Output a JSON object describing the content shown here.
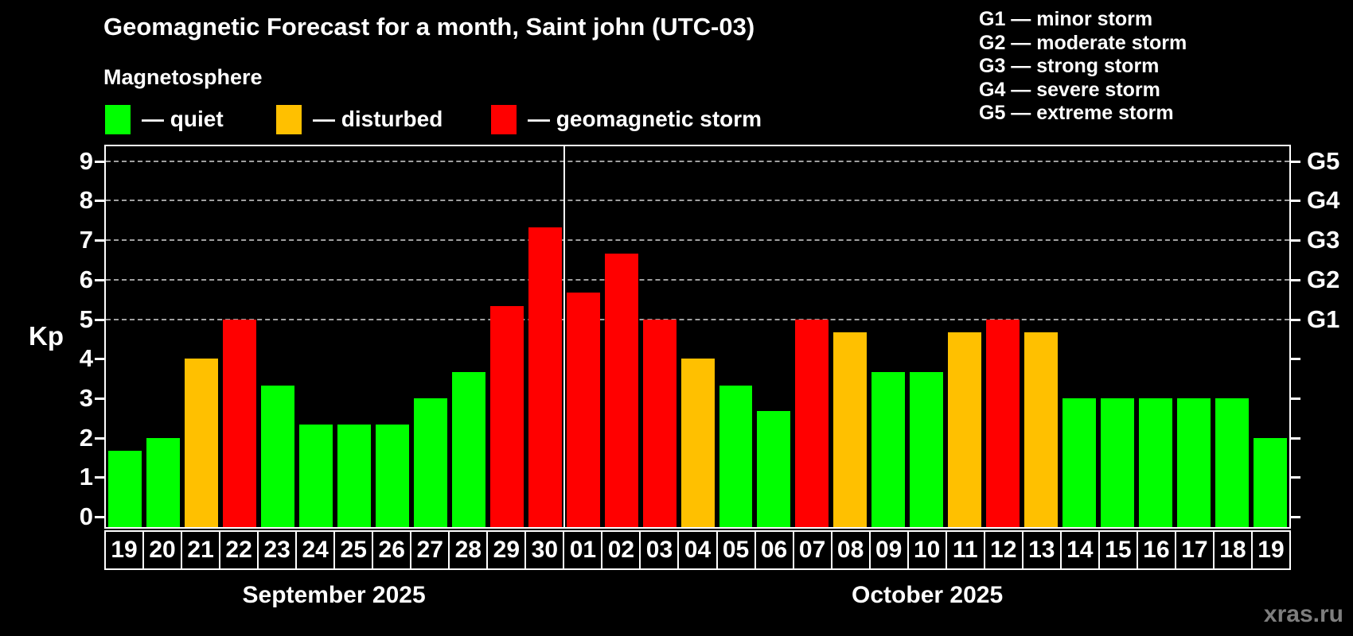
{
  "header": {
    "title": "Geomagnetic Forecast for a month, Saint john (UTC-03)",
    "subtitle": "Magnetosphere"
  },
  "magnetosphere_legend": [
    {
      "label": "— quiet",
      "status": "quiet",
      "color": "#00ff00"
    },
    {
      "label": "— disturbed",
      "status": "disturbed",
      "color": "#ffc000"
    },
    {
      "label": "— geomagnetic storm",
      "status": "storm",
      "color": "#ff0000"
    }
  ],
  "storm_scale_legend": [
    "G1 — minor storm",
    "G2 — moderate storm",
    "G3 — strong storm",
    "G4 — severe storm",
    "G5 — extreme storm"
  ],
  "watermark": "xras.ru",
  "chart_data": {
    "type": "bar",
    "title": "Geomagnetic Forecast for a month, Saint john (UTC-03)",
    "ylabel": "Kp",
    "ylim": [
      0,
      9.4
    ],
    "yticks": [
      0,
      1,
      2,
      3,
      4,
      5,
      6,
      7,
      8,
      9
    ],
    "grid": "horizontal dashed gridlines at Kp 5-9 only",
    "gridlines_at": [
      5,
      6,
      7,
      8,
      9
    ],
    "right_axis": [
      {
        "kp": 5,
        "label": "G1"
      },
      {
        "kp": 6,
        "label": "G2"
      },
      {
        "kp": 7,
        "label": "G3"
      },
      {
        "kp": 8,
        "label": "G4"
      },
      {
        "kp": 9,
        "label": "G5"
      }
    ],
    "months": [
      {
        "label": "September 2025",
        "days": 12
      },
      {
        "label": "October 2025",
        "days": 19
      }
    ],
    "colors": {
      "quiet": "#00ff00",
      "disturbed": "#ffc000",
      "storm": "#ff0000",
      "background": "#000000",
      "axis": "#ffffff",
      "grid": "#a0a0a0"
    },
    "points": [
      {
        "day": "19",
        "kp": 1.67,
        "status": "quiet"
      },
      {
        "day": "20",
        "kp": 2.0,
        "status": "quiet"
      },
      {
        "day": "21",
        "kp": 4.0,
        "status": "disturbed"
      },
      {
        "day": "22",
        "kp": 5.0,
        "status": "storm"
      },
      {
        "day": "23",
        "kp": 3.33,
        "status": "quiet"
      },
      {
        "day": "24",
        "kp": 2.33,
        "status": "quiet"
      },
      {
        "day": "25",
        "kp": 2.33,
        "status": "quiet"
      },
      {
        "day": "26",
        "kp": 2.33,
        "status": "quiet"
      },
      {
        "day": "27",
        "kp": 3.0,
        "status": "quiet"
      },
      {
        "day": "28",
        "kp": 3.67,
        "status": "quiet"
      },
      {
        "day": "29",
        "kp": 5.33,
        "status": "storm"
      },
      {
        "day": "30",
        "kp": 7.33,
        "status": "storm"
      },
      {
        "day": "01",
        "kp": 5.67,
        "status": "storm"
      },
      {
        "day": "02",
        "kp": 6.67,
        "status": "storm"
      },
      {
        "day": "03",
        "kp": 5.0,
        "status": "storm"
      },
      {
        "day": "04",
        "kp": 4.0,
        "status": "disturbed"
      },
      {
        "day": "05",
        "kp": 3.33,
        "status": "quiet"
      },
      {
        "day": "06",
        "kp": 2.67,
        "status": "quiet"
      },
      {
        "day": "07",
        "kp": 5.0,
        "status": "storm"
      },
      {
        "day": "08",
        "kp": 4.67,
        "status": "disturbed"
      },
      {
        "day": "09",
        "kp": 3.67,
        "status": "quiet"
      },
      {
        "day": "10",
        "kp": 3.67,
        "status": "quiet"
      },
      {
        "day": "11",
        "kp": 4.67,
        "status": "disturbed"
      },
      {
        "day": "12",
        "kp": 5.0,
        "status": "storm"
      },
      {
        "day": "13",
        "kp": 4.67,
        "status": "disturbed"
      },
      {
        "day": "14",
        "kp": 3.0,
        "status": "quiet"
      },
      {
        "day": "15",
        "kp": 3.0,
        "status": "quiet"
      },
      {
        "day": "16",
        "kp": 3.0,
        "status": "quiet"
      },
      {
        "day": "17",
        "kp": 3.0,
        "status": "quiet"
      },
      {
        "day": "18",
        "kp": 3.0,
        "status": "quiet"
      },
      {
        "day": "19",
        "kp": 2.0,
        "status": "quiet"
      }
    ]
  }
}
